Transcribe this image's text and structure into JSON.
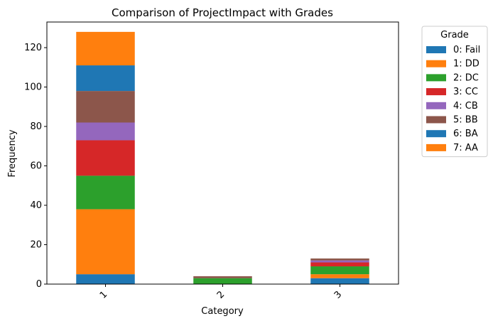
{
  "chart_data": {
    "type": "bar",
    "stacked": true,
    "title": "Comparison of ProjectImpact with Grades",
    "xlabel": "Category",
    "ylabel": "Frequency",
    "categories": [
      "1",
      "2",
      "3"
    ],
    "ylim": [
      0,
      133
    ],
    "yticks": [
      0,
      20,
      40,
      60,
      80,
      100,
      120
    ],
    "grid": false,
    "legend": {
      "title": "Grade",
      "placement": "outside-top-right"
    },
    "series": [
      {
        "name": "0: Fail",
        "color": "#1f77b4",
        "values": [
          5,
          0,
          3
        ]
      },
      {
        "name": "1: DD",
        "color": "#ff7f0e",
        "values": [
          33,
          0,
          2
        ]
      },
      {
        "name": "2: DC",
        "color": "#2ca02c",
        "values": [
          17,
          3,
          4
        ]
      },
      {
        "name": "3: CC",
        "color": "#d62728",
        "values": [
          18,
          0,
          2
        ]
      },
      {
        "name": "4: CB",
        "color": "#9467bd",
        "values": [
          9,
          0,
          1
        ]
      },
      {
        "name": "5: BB",
        "color": "#8c564b",
        "values": [
          16,
          1,
          1
        ]
      },
      {
        "name": "6: BA",
        "color": "#1f77b4",
        "values": [
          13,
          0,
          0
        ]
      },
      {
        "name": "7: AA",
        "color": "#ff7f0e",
        "values": [
          17,
          0,
          0
        ]
      }
    ]
  }
}
